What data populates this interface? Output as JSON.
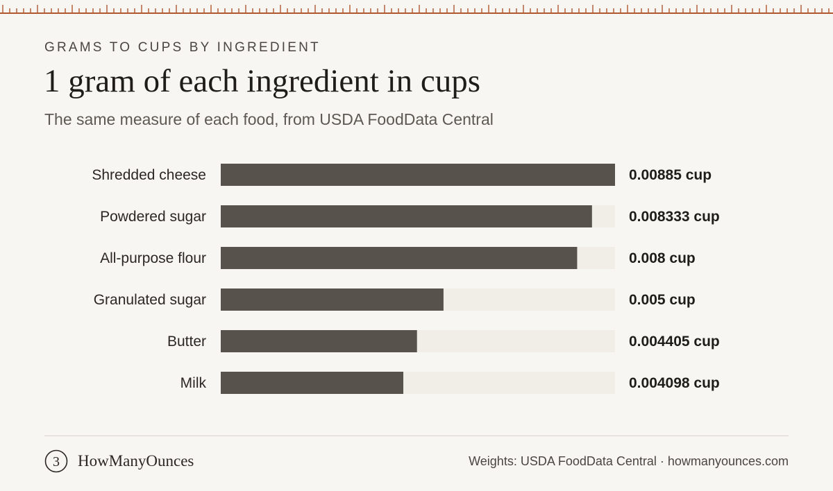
{
  "header": {
    "eyebrow": "GRAMS TO CUPS BY INGREDIENT",
    "title": "1 gram of each ingredient in cups",
    "subtitle": "The same measure of each food, from USDA FoodData Central"
  },
  "chart_data": {
    "type": "bar",
    "orientation": "horizontal",
    "categories": [
      "Shredded cheese",
      "Powdered sugar",
      "All-purpose flour",
      "Granulated sugar",
      "Butter",
      "Milk"
    ],
    "values": [
      0.00885,
      0.008333,
      0.008,
      0.005,
      0.004405,
      0.004098
    ],
    "value_labels": [
      "0.00885 cup",
      "0.008333 cup",
      "0.008 cup",
      "0.005 cup",
      "0.004405 cup",
      "0.004098 cup"
    ],
    "unit": "cup",
    "xlim": [
      0,
      0.00885
    ],
    "grid": false,
    "colors": {
      "bar": "#57524c",
      "track": "#f1eee8"
    }
  },
  "footer": {
    "logo_glyph": "3",
    "brand": "HowManyOunces",
    "credits": "Weights: USDA FoodData Central · howmanyounces.com"
  },
  "colors": {
    "background": "#f8f6f2",
    "ruler": "#b1572f",
    "text": "#1f1d1a"
  }
}
